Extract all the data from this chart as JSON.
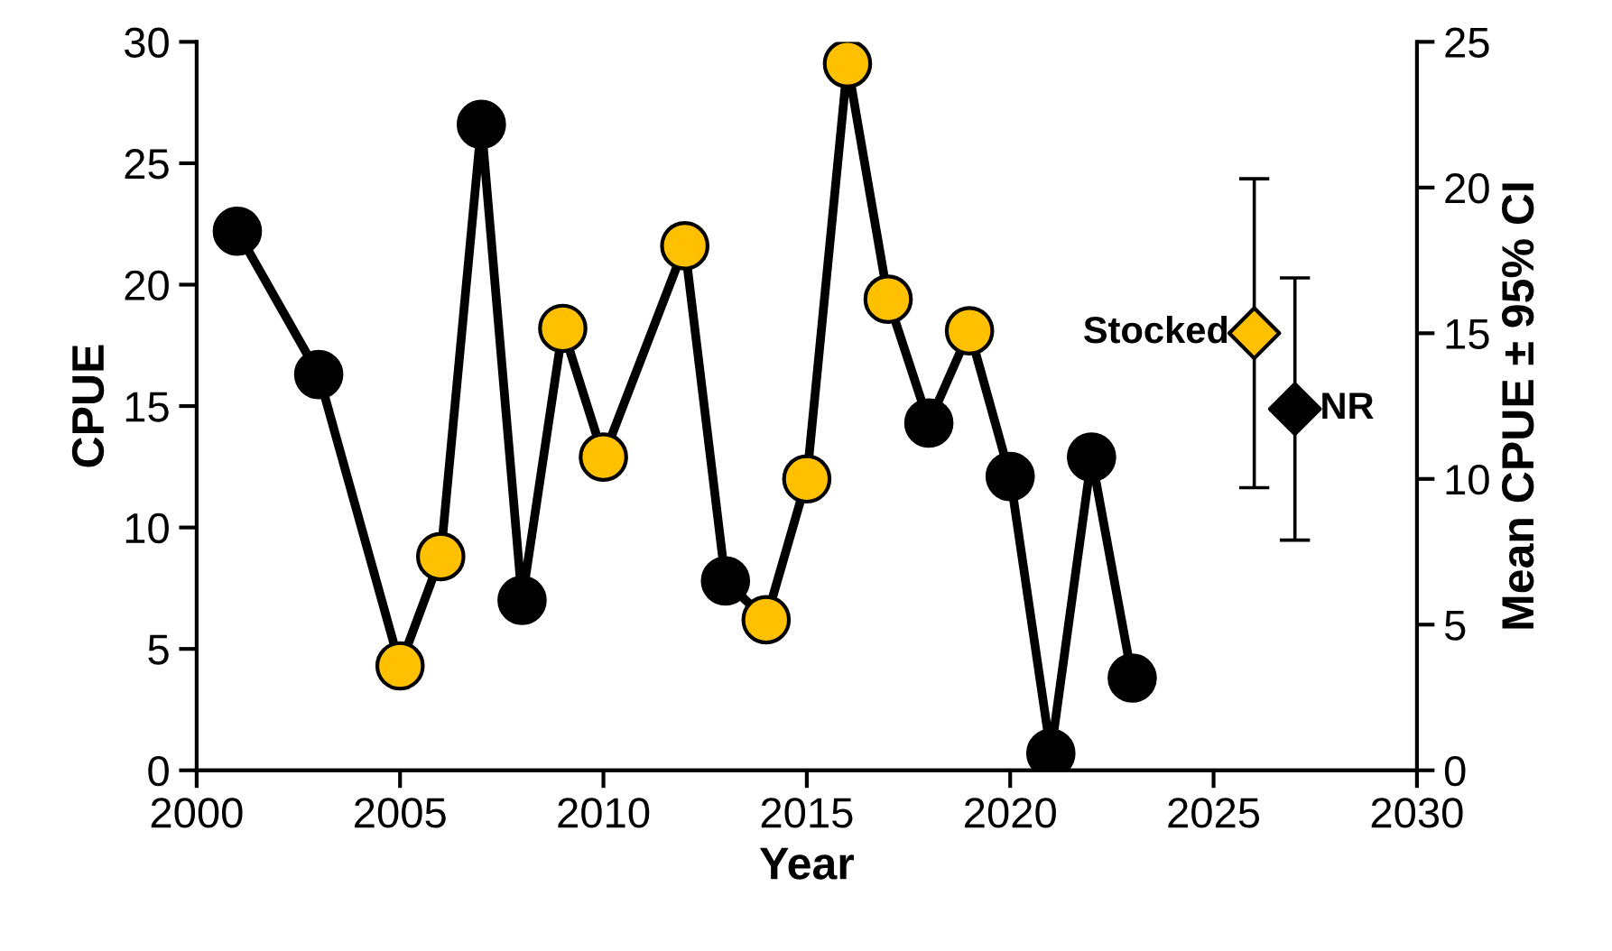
{
  "chart_data": {
    "type": "line",
    "xlabel": "Year",
    "ylabel": "CPUE",
    "y2label": "Mean CPUE ± 95% CI",
    "xlim": [
      2000,
      2030
    ],
    "xticks": [
      2000,
      2005,
      2010,
      2015,
      2020,
      2025,
      2030
    ],
    "ylim": [
      0,
      30
    ],
    "yticks": [
      0,
      5,
      10,
      15,
      20,
      25,
      30
    ],
    "y2lim": [
      0,
      25
    ],
    "y2ticks": [
      0,
      5,
      10,
      15,
      20,
      25
    ],
    "grid": false,
    "legend": false,
    "marker": "circle",
    "line_style": "solid",
    "series": [
      {
        "color": "#000000",
        "x": [
          2001,
          2003,
          2005,
          2006,
          2007,
          2008,
          2009,
          2010,
          2012,
          2013,
          2014,
          2015,
          2016,
          2017,
          2018,
          2019,
          2020,
          2021,
          2022,
          2023
        ],
        "values": [
          22.2,
          16.3,
          4.3,
          8.8,
          26.6,
          7.0,
          18.2,
          12.9,
          21.6,
          7.8,
          6.2,
          12.0,
          29.1,
          19.4,
          14.3,
          18.1,
          12.1,
          0.7,
          12.9,
          3.8
        ],
        "colors": [
          "#000000",
          "#000000",
          "#ffc000",
          "#ffc000",
          "#000000",
          "#000000",
          "#ffc000",
          "#ffc000",
          "#ffc000",
          "#000000",
          "#ffc000",
          "#ffc000",
          "#ffc000",
          "#ffc000",
          "#000000",
          "#ffc000",
          "#000000",
          "#000000",
          "#000000",
          "#000000"
        ]
      },
      {
        "type": "scatter",
        "name": "Stocked",
        "axis": "y2",
        "marker": "diamond",
        "color": "#ffc000",
        "x": [
          2026
        ],
        "values": [
          15.0
        ],
        "errors": [
          [
            9.7,
            20.3
          ]
        ]
      },
      {
        "type": "scatter",
        "name": "NR",
        "axis": "y2",
        "marker": "diamond",
        "color": "#000000",
        "x": [
          2027
        ],
        "values": [
          12.4
        ],
        "errors": [
          [
            7.9,
            16.9
          ]
        ]
      }
    ]
  }
}
